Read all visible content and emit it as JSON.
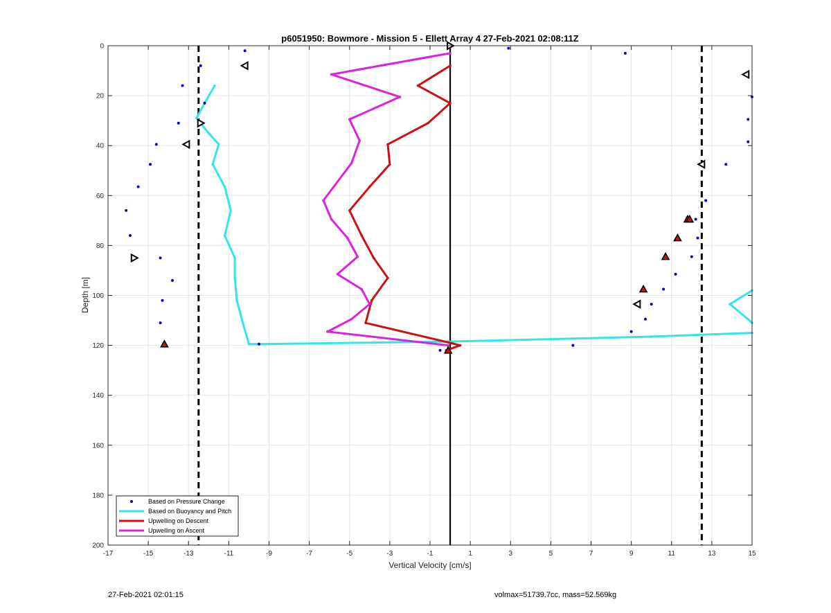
{
  "chart_data": {
    "type": "line",
    "title": "p6051950: Bowmore - Mission 5 - Ellett Array 4 27-Feb-2021 02:08:11Z",
    "xlabel": "Vertical Velocity [cm/s]",
    "ylabel": "Depth [m]",
    "xlim": [
      -17,
      15
    ],
    "ylim": [
      0,
      200
    ],
    "y_reversed": true,
    "grid": true,
    "legend_position": "bottom-left",
    "x_ticks": [
      -17,
      -15,
      -13,
      -11,
      -9,
      -7,
      -5,
      -3,
      -1,
      1,
      3,
      5,
      7,
      9,
      11,
      13,
      15
    ],
    "y_ticks": [
      0,
      20,
      40,
      60,
      80,
      100,
      120,
      140,
      160,
      180,
      200
    ],
    "reference_lines": [
      {
        "x": -12.5,
        "style": "dashed",
        "color": "#000000"
      },
      {
        "x": 0,
        "style": "solid",
        "color": "#000000"
      },
      {
        "x": 12.5,
        "style": "dashed",
        "color": "#000000"
      }
    ],
    "series": [
      {
        "name": "Based on Pressure Change",
        "kind": "scatter",
        "color": "#0000cc",
        "points": [
          [
            -10.2,
            2
          ],
          [
            -12.4,
            8
          ],
          [
            -13.3,
            16
          ],
          [
            -12.2,
            23
          ],
          [
            -13.5,
            31
          ],
          [
            -14.6,
            39.5
          ],
          [
            -14.9,
            47.5
          ],
          [
            -15.5,
            56.5
          ],
          [
            -16.1,
            66
          ],
          [
            -15.9,
            76
          ],
          [
            -14.4,
            85
          ],
          [
            -13.8,
            94
          ],
          [
            -14.3,
            102
          ],
          [
            -14.4,
            111
          ],
          [
            -14.2,
            119.5
          ],
          [
            -9.5,
            119.5
          ],
          [
            -0.5,
            122
          ],
          [
            2.9,
            1
          ],
          [
            6.1,
            120
          ],
          [
            8.7,
            3
          ],
          [
            15,
            20.5
          ],
          [
            14.8,
            29.5
          ],
          [
            14.8,
            38.5
          ],
          [
            13.7,
            47.5
          ],
          [
            12.7,
            62
          ],
          [
            12.2,
            69.5
          ],
          [
            12.3,
            77
          ],
          [
            12.0,
            84.5
          ],
          [
            11.2,
            91.5
          ],
          [
            10.6,
            97.5
          ],
          [
            10.0,
            103.5
          ],
          [
            9.7,
            109.5
          ],
          [
            9.0,
            114.5
          ]
        ]
      },
      {
        "name": "Based on Buoyancy and Pitch",
        "kind": "line",
        "color": "#33e6e6",
        "points": [
          [
            -11.7,
            16
          ],
          [
            -12.2,
            23
          ],
          [
            -12.6,
            29
          ],
          [
            -12.0,
            35
          ],
          [
            -11.5,
            39.5
          ],
          [
            -11.8,
            47.5
          ],
          [
            -11.2,
            56.5
          ],
          [
            -10.9,
            66
          ],
          [
            -11.2,
            76
          ],
          [
            -10.7,
            85
          ],
          [
            -10.7,
            93
          ],
          [
            -10.6,
            102
          ],
          [
            -10.3,
            111
          ],
          [
            -10.0,
            119.5
          ],
          [
            -9.5,
            119.5
          ],
          [
            -0.2,
            118.5
          ],
          [
            5,
            117.5
          ],
          [
            10,
            116.5
          ],
          [
            15,
            115
          ]
        ]
      },
      {
        "name": "Buoyancy and Pitch (right segment)",
        "kind": "line",
        "legend": false,
        "color": "#33e6e6",
        "points": [
          [
            15,
            98
          ],
          [
            13.9,
            103.5
          ],
          [
            14.8,
            109.5
          ],
          [
            15,
            111
          ]
        ]
      },
      {
        "name": "Upwelling on Descent",
        "kind": "line",
        "color": "#cc1111",
        "points": [
          [
            0,
            8
          ],
          [
            -1.6,
            16
          ],
          [
            0,
            23
          ],
          [
            -1.1,
            31
          ],
          [
            -3.1,
            39.5
          ],
          [
            -3.0,
            47.5
          ],
          [
            -4.0,
            56.5
          ],
          [
            -5.0,
            66
          ],
          [
            -4.4,
            76
          ],
          [
            -3.8,
            85
          ],
          [
            -3.1,
            93
          ],
          [
            -3.9,
            102
          ],
          [
            -4.2,
            111
          ],
          [
            0,
            119
          ],
          [
            0.5,
            120
          ],
          [
            -0.2,
            122
          ]
        ]
      },
      {
        "name": "Upwelling on Ascent",
        "kind": "line",
        "color": "#dd22dd",
        "points": [
          [
            0,
            3
          ],
          [
            -5.9,
            11.5
          ],
          [
            -2.5,
            20.5
          ],
          [
            -5.0,
            29.5
          ],
          [
            -4.5,
            38
          ],
          [
            -4.9,
            47
          ],
          [
            -6.3,
            62
          ],
          [
            -5.9,
            69.5
          ],
          [
            -5.1,
            77
          ],
          [
            -4.6,
            84.5
          ],
          [
            -5.6,
            91.5
          ],
          [
            -4.4,
            97.5
          ],
          [
            -4.0,
            103.5
          ],
          [
            -4.9,
            109.5
          ],
          [
            -6.1,
            114.5
          ],
          [
            -0.1,
            120
          ]
        ]
      }
    ],
    "descent_markers": {
      "color": "#cc1111",
      "points": [
        [
          -14.2,
          119.5
        ],
        [
          9.6,
          97.5
        ],
        [
          10.7,
          84.5
        ],
        [
          11.3,
          77
        ],
        [
          11.8,
          69.5
        ],
        [
          11.9,
          69.5
        ],
        [
          -0.1,
          122
        ]
      ]
    },
    "triangle_markers_right": {
      "points": [
        [
          0,
          0
        ],
        [
          -15.7,
          85
        ],
        [
          -12.4,
          31
        ]
      ]
    },
    "triangle_markers_left": {
      "points": [
        [
          -10.2,
          8
        ],
        [
          -13.1,
          39.5
        ],
        [
          14.7,
          11.5
        ],
        [
          12.5,
          47.5
        ],
        [
          9.3,
          103.5
        ]
      ]
    }
  },
  "footer": {
    "left": "27-Feb-2021 02:01:15",
    "right": "volmax=51739.7cc, mass=52.569kg"
  }
}
